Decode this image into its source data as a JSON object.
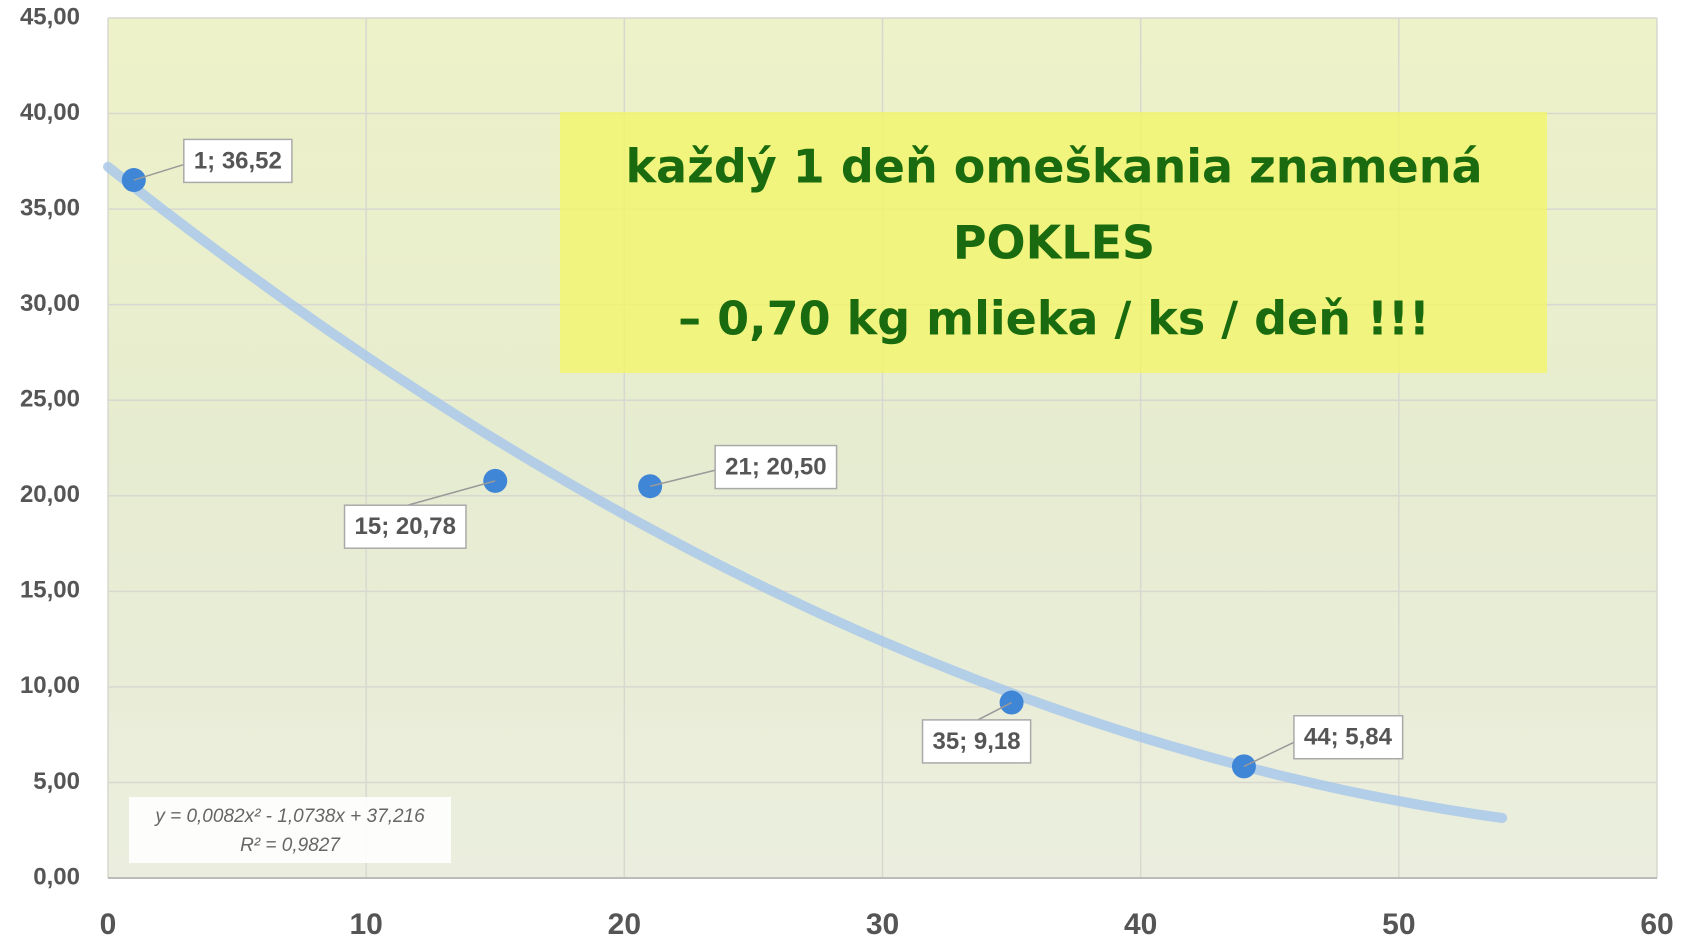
{
  "chart_data": {
    "type": "scatter",
    "x": [
      1,
      15,
      21,
      35,
      44
    ],
    "series": [
      {
        "color": "#3f86d6",
        "values": [
          36.52,
          20.78,
          20.5,
          9.18,
          5.84
        ],
        "value_labels": [
          "1; 36,52",
          "15; 20,78",
          "21; 20,50",
          "35; 9,18",
          "44; 5,84"
        ]
      }
    ],
    "xlim": [
      0,
      60
    ],
    "xticks": [
      0,
      10,
      20,
      30,
      40,
      50,
      60
    ],
    "ylim": [
      0,
      45
    ],
    "yticks": [
      {
        "value": 0,
        "label": "0,00"
      },
      {
        "value": 5,
        "label": "5,00"
      },
      {
        "value": 10,
        "label": "10,00"
      },
      {
        "value": 15,
        "label": "15,00"
      },
      {
        "value": 20,
        "label": "20,00"
      },
      {
        "value": 25,
        "label": "25,00"
      },
      {
        "value": 30,
        "label": "30,00"
      },
      {
        "value": 35,
        "label": "35,00"
      },
      {
        "value": 40,
        "label": "40,00"
      },
      {
        "value": 45,
        "label": "45,00"
      }
    ],
    "grid": true,
    "trendline": {
      "type": "polynomial",
      "coefficients": [
        0.0082,
        -1.0738,
        37.216
      ],
      "x_range": [
        0,
        54
      ],
      "color": "#a9c8ea",
      "equation": "y = 0,0082x² - 1,0738x + 37,216",
      "r_squared": "R² = 0,9827"
    },
    "annotation": [
      "každý 1 deň omeškania znamená",
      "POKLES",
      "– 0,70 kg mlieka / ks / deň !!!"
    ]
  }
}
